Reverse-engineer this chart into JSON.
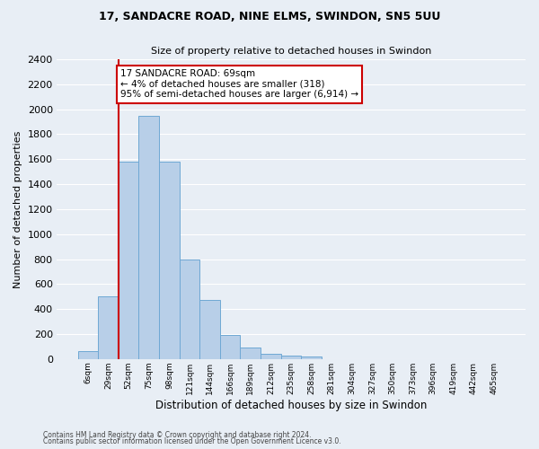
{
  "title_line1": "17, SANDACRE ROAD, NINE ELMS, SWINDON, SN5 5UU",
  "title_line2": "Size of property relative to detached houses in Swindon",
  "xlabel": "Distribution of detached houses by size in Swindon",
  "ylabel": "Number of detached properties",
  "footer_line1": "Contains HM Land Registry data © Crown copyright and database right 2024.",
  "footer_line2": "Contains public sector information licensed under the Open Government Licence v3.0.",
  "bar_labels": [
    "6sqm",
    "29sqm",
    "52sqm",
    "75sqm",
    "98sqm",
    "121sqm",
    "144sqm",
    "166sqm",
    "189sqm",
    "212sqm",
    "235sqm",
    "258sqm",
    "281sqm",
    "304sqm",
    "327sqm",
    "350sqm",
    "373sqm",
    "396sqm",
    "419sqm",
    "442sqm",
    "465sqm"
  ],
  "bar_values": [
    60,
    500,
    1580,
    1950,
    1580,
    800,
    470,
    190,
    90,
    45,
    30,
    20,
    0,
    0,
    0,
    0,
    0,
    0,
    0,
    0,
    0
  ],
  "bar_color": "#b8cfe8",
  "bar_edge_color": "#6fa8d4",
  "ylim": [
    0,
    2400
  ],
  "yticks": [
    0,
    200,
    400,
    600,
    800,
    1000,
    1200,
    1400,
    1600,
    1800,
    2000,
    2200,
    2400
  ],
  "vline_color": "#cc0000",
  "vline_x": 1.5,
  "annotation_text": "17 SANDACRE ROAD: 69sqm\n← 4% of detached houses are smaller (318)\n95% of semi-detached houses are larger (6,914) →",
  "annotation_box_color": "#ffffff",
  "annotation_box_edge": "#cc0000",
  "bg_color": "#e8eef5",
  "plot_bg_color": "#e8eef5",
  "grid_color": "#ffffff"
}
